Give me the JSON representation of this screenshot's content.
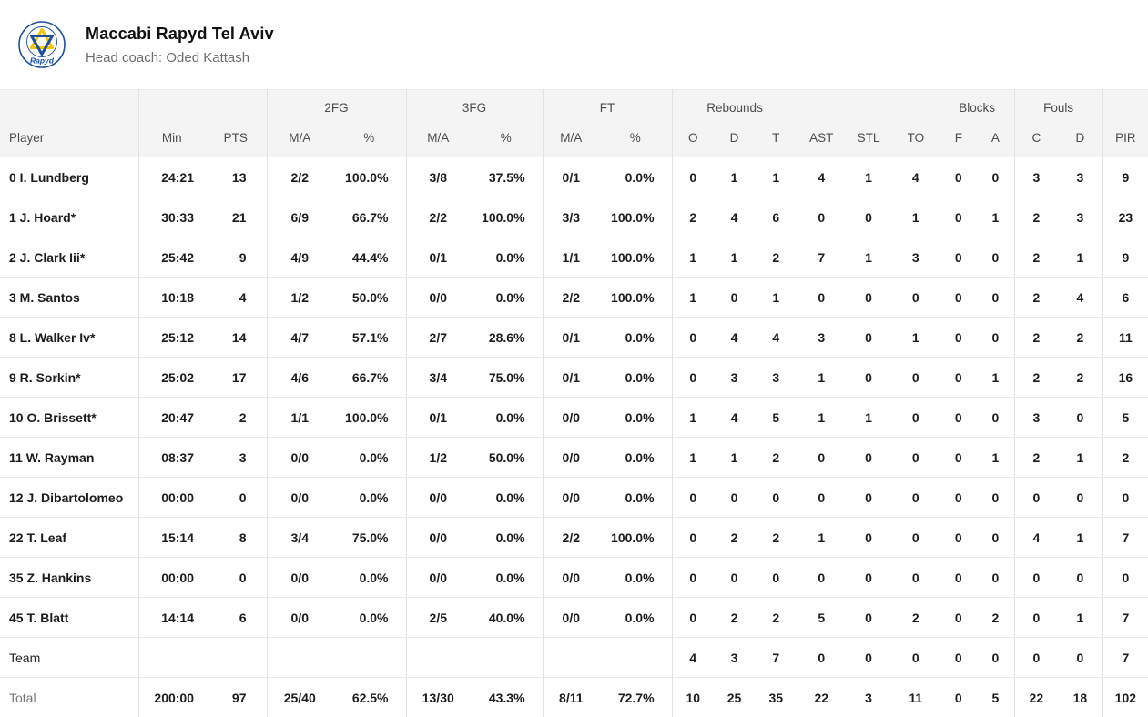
{
  "header": {
    "team_name": "Maccabi Rapyd Tel Aviv",
    "coach_label": "Head coach: Oded Kattash",
    "logo_text": "Rapyd"
  },
  "table": {
    "groups": [
      "2FG",
      "3FG",
      "FT",
      "Rebounds",
      "Blocks",
      "Fouls"
    ],
    "columns": [
      "Player",
      "Min",
      "PTS",
      "M/A",
      "%",
      "M/A",
      "%",
      "M/A",
      "%",
      "O",
      "D",
      "T",
      "AST",
      "STL",
      "TO",
      "F",
      "A",
      "C",
      "D",
      "PIR"
    ],
    "player_rows": [
      [
        "0 I. Lundberg",
        "24:21",
        "13",
        "2/2",
        "100.0%",
        "3/8",
        "37.5%",
        "0/1",
        "0.0%",
        "0",
        "1",
        "1",
        "4",
        "1",
        "4",
        "0",
        "0",
        "3",
        "3",
        "9"
      ],
      [
        "1 J. Hoard*",
        "30:33",
        "21",
        "6/9",
        "66.7%",
        "2/2",
        "100.0%",
        "3/3",
        "100.0%",
        "2",
        "4",
        "6",
        "0",
        "0",
        "1",
        "0",
        "1",
        "2",
        "3",
        "23"
      ],
      [
        "2 J. Clark Iii*",
        "25:42",
        "9",
        "4/9",
        "44.4%",
        "0/1",
        "0.0%",
        "1/1",
        "100.0%",
        "1",
        "1",
        "2",
        "7",
        "1",
        "3",
        "0",
        "0",
        "2",
        "1",
        "9"
      ],
      [
        "3 M. Santos",
        "10:18",
        "4",
        "1/2",
        "50.0%",
        "0/0",
        "0.0%",
        "2/2",
        "100.0%",
        "1",
        "0",
        "1",
        "0",
        "0",
        "0",
        "0",
        "0",
        "2",
        "4",
        "6"
      ],
      [
        "8 L. Walker Iv*",
        "25:12",
        "14",
        "4/7",
        "57.1%",
        "2/7",
        "28.6%",
        "0/1",
        "0.0%",
        "0",
        "4",
        "4",
        "3",
        "0",
        "1",
        "0",
        "0",
        "2",
        "2",
        "11"
      ],
      [
        "9 R. Sorkin*",
        "25:02",
        "17",
        "4/6",
        "66.7%",
        "3/4",
        "75.0%",
        "0/1",
        "0.0%",
        "0",
        "3",
        "3",
        "1",
        "0",
        "0",
        "0",
        "1",
        "2",
        "2",
        "16"
      ],
      [
        "10 O. Brissett*",
        "20:47",
        "2",
        "1/1",
        "100.0%",
        "0/1",
        "0.0%",
        "0/0",
        "0.0%",
        "1",
        "4",
        "5",
        "1",
        "1",
        "0",
        "0",
        "0",
        "3",
        "0",
        "5"
      ],
      [
        "11 W. Rayman",
        "08:37",
        "3",
        "0/0",
        "0.0%",
        "1/2",
        "50.0%",
        "0/0",
        "0.0%",
        "1",
        "1",
        "2",
        "0",
        "0",
        "0",
        "0",
        "1",
        "2",
        "1",
        "2"
      ],
      [
        "12 J. Dibartolomeo",
        "00:00",
        "0",
        "0/0",
        "0.0%",
        "0/0",
        "0.0%",
        "0/0",
        "0.0%",
        "0",
        "0",
        "0",
        "0",
        "0",
        "0",
        "0",
        "0",
        "0",
        "0",
        "0"
      ],
      [
        "22 T. Leaf",
        "15:14",
        "8",
        "3/4",
        "75.0%",
        "0/0",
        "0.0%",
        "2/2",
        "100.0%",
        "0",
        "2",
        "2",
        "1",
        "0",
        "0",
        "0",
        "0",
        "4",
        "1",
        "7"
      ],
      [
        "35 Z. Hankins",
        "00:00",
        "0",
        "0/0",
        "0.0%",
        "0/0",
        "0.0%",
        "0/0",
        "0.0%",
        "0",
        "0",
        "0",
        "0",
        "0",
        "0",
        "0",
        "0",
        "0",
        "0",
        "0"
      ],
      [
        "45 T. Blatt",
        "14:14",
        "6",
        "0/0",
        "0.0%",
        "2/5",
        "40.0%",
        "0/0",
        "0.0%",
        "0",
        "2",
        "2",
        "5",
        "0",
        "2",
        "0",
        "2",
        "0",
        "1",
        "7"
      ]
    ],
    "team_row": [
      "Team",
      "",
      "",
      "",
      "",
      "",
      "",
      "",
      "",
      "4",
      "3",
      "7",
      "0",
      "0",
      "0",
      "0",
      "0",
      "0",
      "0",
      "7"
    ],
    "total_row": [
      "Total",
      "200:00",
      "97",
      "25/40",
      "62.5%",
      "13/30",
      "43.3%",
      "8/11",
      "72.7%",
      "10",
      "25",
      "35",
      "22",
      "3",
      "11",
      "0",
      "5",
      "22",
      "18",
      "102"
    ]
  },
  "colors": {
    "header_bg": "#f4f4f4",
    "row_border": "#e9e9e9",
    "muted_text": "#6e6e6e",
    "logo_blue": "#1b4fa0",
    "logo_yellow": "#f8c300"
  }
}
